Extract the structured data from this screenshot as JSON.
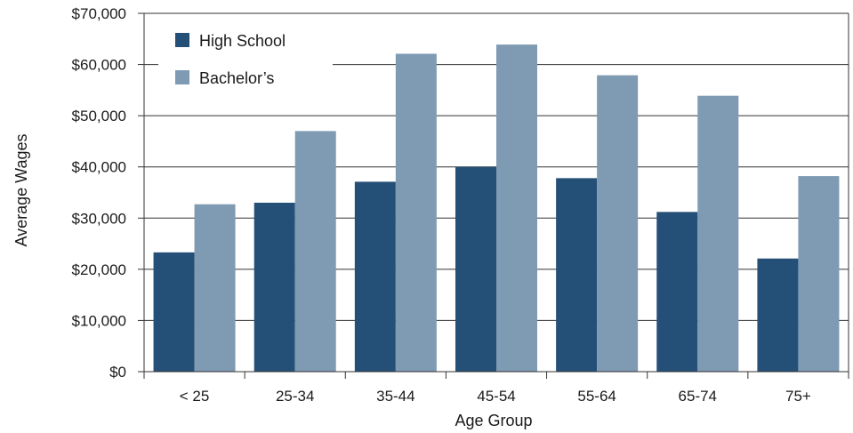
{
  "chart_data": {
    "type": "bar",
    "title": "",
    "xlabel": "Age Group",
    "ylabel": "Average Wages",
    "categories": [
      "< 25",
      "25-34",
      "35-44",
      "45-54",
      "55-64",
      "65-74",
      "75+"
    ],
    "series": [
      {
        "name": "High School",
        "color": "#244f77",
        "values": [
          23300,
          33000,
          37100,
          40000,
          37800,
          31200,
          22100
        ]
      },
      {
        "name": "Bachelor’s",
        "color": "#7f9ab3",
        "values": [
          32700,
          47000,
          62100,
          63900,
          57900,
          53900,
          38200
        ]
      }
    ],
    "ylim": [
      0,
      70000
    ],
    "yticks": [
      0,
      10000,
      20000,
      30000,
      40000,
      50000,
      60000,
      70000
    ],
    "ytick_labels": [
      "$0",
      "$10,000",
      "$20,000",
      "$30,000",
      "$40,000",
      "$50,000",
      "$60,000",
      "$70,000"
    ],
    "grid": true,
    "legend_position": "top-left"
  }
}
